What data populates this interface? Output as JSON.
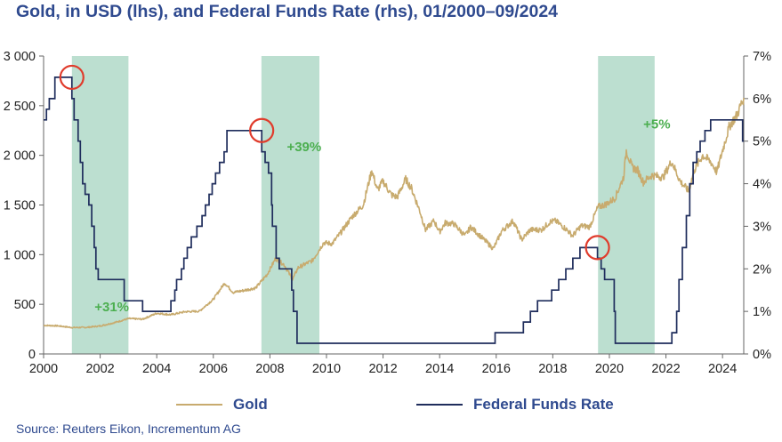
{
  "chart_data": {
    "type": "line",
    "title": "Gold, in USD (lhs), and Federal Funds Rate (rhs), 01/2000–09/2024",
    "x_range": [
      2000,
      2024.75
    ],
    "x_ticks": [
      2000,
      2002,
      2004,
      2006,
      2008,
      2010,
      2012,
      2014,
      2016,
      2018,
      2020,
      2022,
      2024
    ],
    "x_tick_labels": [
      "2000",
      "2002",
      "2004",
      "2006",
      "2008",
      "2010",
      "2012",
      "2014",
      "2016",
      "2018",
      "2020",
      "2022",
      "2024"
    ],
    "y_left": {
      "label": "Gold, in USD",
      "range": [
        0,
        3000
      ],
      "ticks": [
        0,
        500,
        1000,
        1500,
        2000,
        2500,
        3000
      ],
      "tick_labels": [
        "0",
        "500",
        "1 000",
        "1 500",
        "2 000",
        "2 500",
        "3 000"
      ]
    },
    "y_right": {
      "label": "Federal Funds Rate",
      "range": [
        0,
        7
      ],
      "ticks": [
        0,
        1,
        2,
        3,
        4,
        5,
        6,
        7
      ],
      "tick_labels": [
        "0%",
        "1%",
        "2%",
        "3%",
        "4%",
        "5%",
        "6%",
        "7%"
      ]
    },
    "grid": false,
    "legend_position": "bottom",
    "series": [
      {
        "name": "Gold",
        "axis": "left",
        "color": "#c8ab6e",
        "points": [
          [
            2000.0,
            288
          ],
          [
            2000.5,
            283
          ],
          [
            2001.0,
            266
          ],
          [
            2001.5,
            267
          ],
          [
            2002.0,
            282
          ],
          [
            2002.5,
            315
          ],
          [
            2003.0,
            356
          ],
          [
            2003.5,
            350
          ],
          [
            2004.0,
            410
          ],
          [
            2004.5,
            395
          ],
          [
            2005.0,
            425
          ],
          [
            2005.5,
            430
          ],
          [
            2006.0,
            550
          ],
          [
            2006.4,
            715
          ],
          [
            2006.7,
            620
          ],
          [
            2007.0,
            635
          ],
          [
            2007.5,
            665
          ],
          [
            2007.9,
            800
          ],
          [
            2008.2,
            960
          ],
          [
            2008.5,
            900
          ],
          [
            2008.8,
            750
          ],
          [
            2009.0,
            870
          ],
          [
            2009.5,
            940
          ],
          [
            2009.9,
            1120
          ],
          [
            2010.2,
            1110
          ],
          [
            2010.5,
            1220
          ],
          [
            2010.9,
            1380
          ],
          [
            2011.3,
            1500
          ],
          [
            2011.6,
            1850
          ],
          [
            2011.8,
            1650
          ],
          [
            2012.0,
            1740
          ],
          [
            2012.3,
            1600
          ],
          [
            2012.5,
            1580
          ],
          [
            2012.8,
            1760
          ],
          [
            2013.0,
            1670
          ],
          [
            2013.3,
            1440
          ],
          [
            2013.5,
            1250
          ],
          [
            2013.8,
            1340
          ],
          [
            2014.0,
            1230
          ],
          [
            2014.2,
            1320
          ],
          [
            2014.5,
            1310
          ],
          [
            2014.9,
            1190
          ],
          [
            2015.1,
            1280
          ],
          [
            2015.5,
            1170
          ],
          [
            2015.9,
            1060
          ],
          [
            2016.2,
            1240
          ],
          [
            2016.6,
            1340
          ],
          [
            2016.9,
            1150
          ],
          [
            2017.2,
            1250
          ],
          [
            2017.6,
            1250
          ],
          [
            2017.9,
            1330
          ],
          [
            2018.1,
            1340
          ],
          [
            2018.5,
            1250
          ],
          [
            2018.7,
            1190
          ],
          [
            2019.0,
            1290
          ],
          [
            2019.3,
            1280
          ],
          [
            2019.6,
            1480
          ],
          [
            2019.9,
            1510
          ],
          [
            2020.2,
            1570
          ],
          [
            2020.5,
            1780
          ],
          [
            2020.6,
            2050
          ],
          [
            2020.8,
            1880
          ],
          [
            2021.0,
            1850
          ],
          [
            2021.2,
            1730
          ],
          [
            2021.5,
            1800
          ],
          [
            2021.9,
            1780
          ],
          [
            2022.2,
            1940
          ],
          [
            2022.5,
            1740
          ],
          [
            2022.8,
            1640
          ],
          [
            2023.0,
            1850
          ],
          [
            2023.3,
            2000
          ],
          [
            2023.6,
            1930
          ],
          [
            2023.8,
            1830
          ],
          [
            2024.0,
            2050
          ],
          [
            2024.25,
            2300
          ],
          [
            2024.5,
            2400
          ],
          [
            2024.75,
            2580
          ]
        ]
      },
      {
        "name": "Federal Funds Rate",
        "axis": "right",
        "color": "#1f2d5c",
        "steps": [
          [
            2000.0,
            5.5
          ],
          [
            2000.1,
            5.75
          ],
          [
            2000.2,
            6.0
          ],
          [
            2000.4,
            6.5
          ],
          [
            2001.0,
            6.0
          ],
          [
            2001.08,
            5.5
          ],
          [
            2001.22,
            5.0
          ],
          [
            2001.3,
            4.5
          ],
          [
            2001.38,
            4.0
          ],
          [
            2001.47,
            3.75
          ],
          [
            2001.6,
            3.5
          ],
          [
            2001.7,
            3.0
          ],
          [
            2001.79,
            2.5
          ],
          [
            2001.85,
            2.0
          ],
          [
            2001.93,
            1.75
          ],
          [
            2002.85,
            1.25
          ],
          [
            2003.5,
            1.0
          ],
          [
            2004.5,
            1.25
          ],
          [
            2004.64,
            1.5
          ],
          [
            2004.7,
            1.75
          ],
          [
            2004.87,
            2.0
          ],
          [
            2004.96,
            2.25
          ],
          [
            2005.08,
            2.5
          ],
          [
            2005.22,
            2.75
          ],
          [
            2005.42,
            3.0
          ],
          [
            2005.6,
            3.25
          ],
          [
            2005.72,
            3.5
          ],
          [
            2005.85,
            3.75
          ],
          [
            2005.96,
            4.0
          ],
          [
            2006.08,
            4.25
          ],
          [
            2006.22,
            4.5
          ],
          [
            2006.38,
            4.75
          ],
          [
            2006.48,
            5.25
          ],
          [
            2007.71,
            4.75
          ],
          [
            2007.83,
            4.5
          ],
          [
            2007.95,
            4.25
          ],
          [
            2008.06,
            3.5
          ],
          [
            2008.09,
            3.0
          ],
          [
            2008.22,
            2.25
          ],
          [
            2008.33,
            2.0
          ],
          [
            2008.77,
            1.5
          ],
          [
            2008.83,
            1.0
          ],
          [
            2008.96,
            0.25
          ],
          [
            2015.96,
            0.5
          ],
          [
            2016.96,
            0.75
          ],
          [
            2017.21,
            1.0
          ],
          [
            2017.46,
            1.25
          ],
          [
            2017.96,
            1.5
          ],
          [
            2018.21,
            1.75
          ],
          [
            2018.46,
            2.0
          ],
          [
            2018.71,
            2.25
          ],
          [
            2018.96,
            2.5
          ],
          [
            2019.58,
            2.25
          ],
          [
            2019.71,
            2.0
          ],
          [
            2019.83,
            1.75
          ],
          [
            2020.17,
            1.0
          ],
          [
            2020.21,
            0.25
          ],
          [
            2022.21,
            0.5
          ],
          [
            2022.38,
            1.0
          ],
          [
            2022.46,
            1.75
          ],
          [
            2022.58,
            2.5
          ],
          [
            2022.72,
            3.25
          ],
          [
            2022.84,
            4.0
          ],
          [
            2022.96,
            4.5
          ],
          [
            2023.09,
            4.75
          ],
          [
            2023.21,
            5.0
          ],
          [
            2023.38,
            5.25
          ],
          [
            2023.58,
            5.5
          ],
          [
            2024.71,
            5.0
          ],
          [
            2024.75,
            5.0
          ]
        ]
      }
    ],
    "shaded_periods": [
      {
        "start": 2001.0,
        "end": 2003.0
      },
      {
        "start": 2007.7,
        "end": 2009.75
      },
      {
        "start": 2019.6,
        "end": 2021.6
      }
    ],
    "annotations": [
      {
        "text": "+31%",
        "x": 2001.8,
        "y_left": 430
      },
      {
        "text": "+39%",
        "x": 2008.6,
        "y_left": 2040
      },
      {
        "text": "+5%",
        "x": 2021.2,
        "y_left": 2270
      }
    ],
    "circles": [
      {
        "x": 2001.0,
        "y_right": 6.5
      },
      {
        "x": 2007.71,
        "y_right": 5.25
      },
      {
        "x": 2019.58,
        "y_right": 2.5
      }
    ],
    "shade_color": "#bcdfd0",
    "circle_color": "#e03c2c",
    "annotation_color": "#4caf50"
  },
  "legend": {
    "gold_label": "Gold",
    "fed_label": "Federal Funds Rate"
  },
  "source": "Source: Reuters Eikon, Incrementum AG"
}
